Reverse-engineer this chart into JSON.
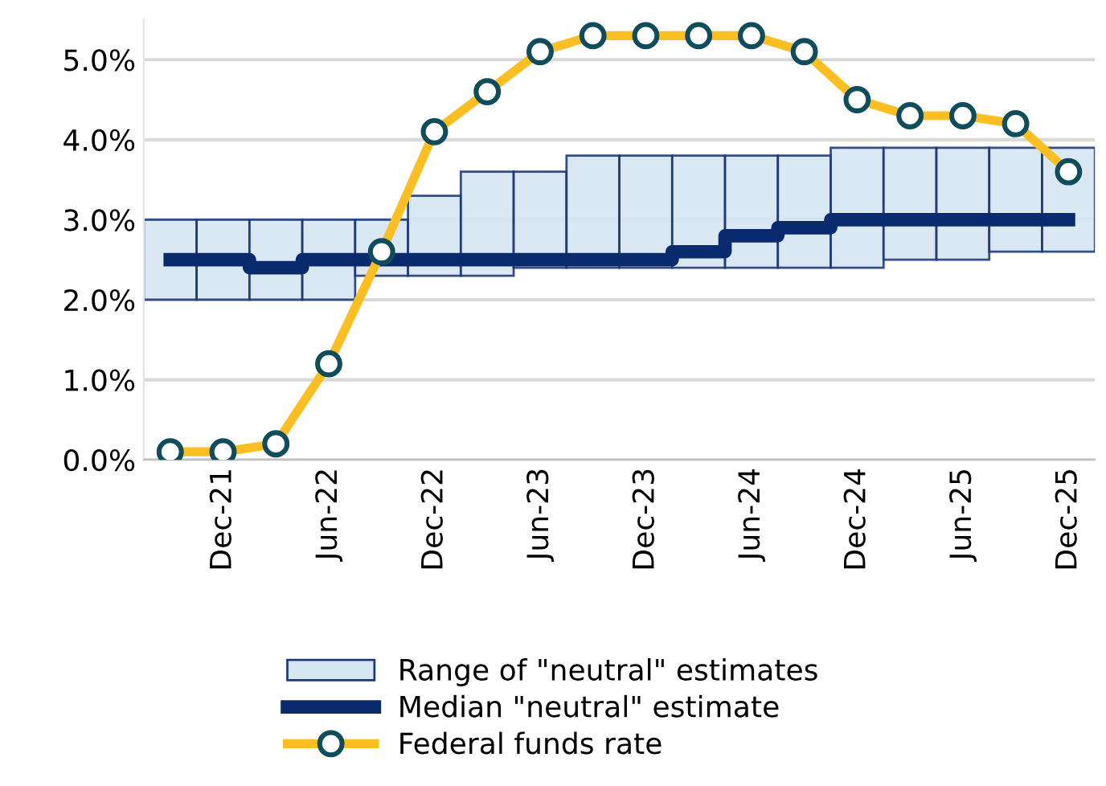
{
  "chart_data": {
    "type": "bar",
    "categories": [
      null,
      "Dec-21",
      null,
      "Jun-22",
      null,
      "Dec-22",
      null,
      "Jun-23",
      null,
      "Dec-23",
      null,
      "Jun-24",
      null,
      "Dec-24",
      null,
      "Jun-25",
      null,
      "Dec-25"
    ],
    "series": [
      {
        "name": "Range of \"neutral\" estimates",
        "color": "#d6e6f2",
        "base": [
          2.0,
          2.0,
          2.0,
          2.0,
          2.3,
          2.3,
          2.3,
          2.4,
          2.4,
          2.4,
          2.4,
          2.4,
          2.4,
          2.4,
          2.5,
          2.5,
          2.6,
          2.6
        ],
        "values": [
          1.0,
          1.0,
          1.0,
          1.0,
          0.7,
          1.0,
          1.3,
          1.2,
          1.4,
          1.4,
          1.4,
          1.4,
          1.4,
          1.5,
          1.4,
          1.4,
          1.3,
          1.3
        ]
      },
      {
        "name": "Median \"neutral\" estimate",
        "type": "step",
        "color": "#0a2a6e",
        "values": [
          2.5,
          2.5,
          2.4,
          2.5,
          2.5,
          2.5,
          2.5,
          2.5,
          2.5,
          2.5,
          2.6,
          2.8,
          2.9,
          3.0,
          3.0,
          3.0,
          3.0,
          3.0
        ]
      },
      {
        "name": "Federal funds rate",
        "type": "line",
        "color": "#fbbf24",
        "marker": "circle",
        "values": [
          0.1,
          0.1,
          0.2,
          1.2,
          2.6,
          4.1,
          4.6,
          5.1,
          5.3,
          5.3,
          5.3,
          5.3,
          5.1,
          4.5,
          4.3,
          4.3,
          4.2,
          3.6
        ]
      }
    ],
    "ylim": [
      0,
      5.5
    ],
    "yticks": [
      {
        "value": 0,
        "label": "0.0%"
      },
      {
        "value": 1,
        "label": "1.0%"
      },
      {
        "value": 2,
        "label": "2.0%"
      },
      {
        "value": 3,
        "label": "3.0%"
      },
      {
        "value": 4,
        "label": "4.0%"
      },
      {
        "value": 5,
        "label": "5.0%"
      }
    ],
    "grid": "y",
    "legend": "bottom"
  }
}
